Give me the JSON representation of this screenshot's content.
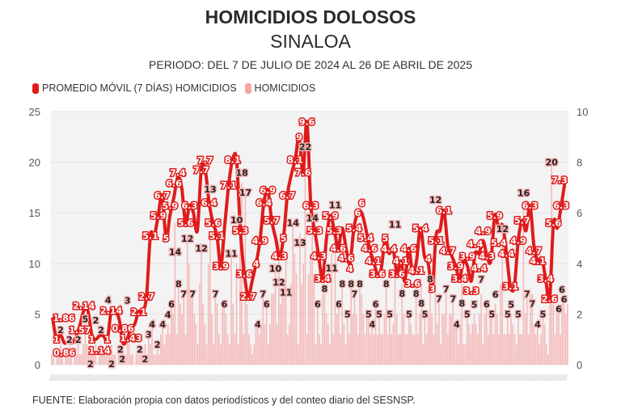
{
  "chart_data": {
    "type": "bar+line",
    "title": "HOMICIDIOS DOLOSOS",
    "subtitle": "SINALOA",
    "period": "PERIODO: DEL 7 DE JULIO DE 2024 AL 26 DE ABRIL DE 2025",
    "x_range": [
      "2024-07-07",
      "2025-04-26"
    ],
    "left_axis": {
      "ylim": [
        0,
        25
      ],
      "ticks": [
        "0",
        "5",
        "10",
        "15",
        "20",
        "25"
      ]
    },
    "right_axis": {
      "ylim": [
        0,
        10
      ],
      "ticks": [
        "0",
        "2",
        "4",
        "6",
        "8",
        "10"
      ]
    },
    "grid": true,
    "legend_position": "top-left",
    "colors": {
      "moving_average": "#e01b1b",
      "homicides": "#f6a5a5",
      "plot_bg": "#f3f3f3"
    },
    "legend": [
      {
        "label": "PROMEDIO MÓVIL (7 DÍAS) HOMICIDIOS",
        "color": "#e01b1b"
      },
      {
        "label": "HOMICIDIOS",
        "color": "#f6a5a5"
      }
    ],
    "series": [
      {
        "name": "HOMICIDIOS",
        "axis": "left",
        "type": "bar",
        "values": [
          1,
          1,
          0,
          1,
          1,
          2,
          1,
          0,
          1,
          1,
          2,
          1,
          0,
          1,
          1,
          2,
          1,
          1,
          2,
          5,
          2,
          1,
          2,
          1,
          1,
          2,
          0,
          1,
          2,
          1,
          1,
          2,
          4,
          1,
          2,
          1,
          1,
          0,
          1,
          2,
          2,
          1,
          1,
          3,
          2,
          1,
          1,
          0,
          1,
          1,
          2,
          1,
          1,
          2,
          1,
          3,
          2,
          4,
          1,
          1,
          2,
          1,
          3,
          4,
          2,
          3,
          4,
          3,
          6,
          5,
          14,
          3,
          8,
          6,
          5,
          7,
          3,
          12,
          10,
          7,
          7,
          5,
          4,
          2,
          8,
          12,
          6,
          4,
          2,
          10,
          13,
          5,
          2,
          7,
          6,
          3,
          2,
          6,
          6,
          5,
          3,
          2,
          11,
          6,
          3,
          10,
          2,
          14,
          18,
          3,
          17,
          6,
          3,
          2,
          1,
          2,
          4,
          4,
          3,
          4,
          7,
          4,
          6,
          2,
          4,
          7,
          7,
          10,
          4,
          12,
          6,
          7,
          8,
          11,
          3,
          4,
          8,
          14,
          11,
          9,
          2,
          13,
          8,
          10,
          22,
          3,
          9,
          11,
          14,
          9,
          2,
          6,
          3,
          2,
          7,
          8,
          5,
          4,
          2,
          11,
          3,
          11,
          5,
          6,
          3,
          8,
          4,
          2,
          5,
          3,
          8,
          5,
          7,
          5,
          3,
          8,
          7,
          5,
          3,
          5,
          5,
          3,
          4,
          3,
          6,
          3,
          5,
          3,
          3,
          5,
          8,
          3,
          5,
          3,
          4,
          11,
          5,
          3,
          3,
          8,
          5,
          3,
          3,
          5,
          4,
          3,
          3,
          8,
          3,
          5,
          8,
          2,
          5,
          3,
          5,
          8,
          5,
          3,
          12,
          4,
          7,
          2,
          5,
          5,
          7,
          3,
          5,
          5,
          7,
          4,
          4,
          2,
          4,
          8,
          2,
          2,
          5,
          4,
          3,
          4,
          5,
          4,
          3,
          5,
          7,
          2,
          5,
          6,
          3,
          5,
          5,
          3,
          6,
          5,
          3,
          8,
          12,
          3,
          3,
          5,
          3,
          5,
          4,
          3,
          2,
          5,
          3,
          3,
          16,
          5,
          7,
          3,
          7,
          7,
          4,
          3,
          4,
          2,
          3,
          5,
          4,
          2,
          1,
          6,
          20,
          6,
          3,
          5,
          6,
          3,
          6,
          6,
          5,
          6
        ]
      },
      {
        "name": "PROMEDIO MÓVIL (7 DÍAS) HOMICIDIOS",
        "axis": "right",
        "type": "line",
        "values": [
          1.86,
          1.0,
          1.2,
          0.86,
          0.9,
          0.86,
          1.1,
          1.57,
          2.14,
          2.14,
          1.2,
          1.0,
          1.14,
          1.14,
          1.0,
          2.14,
          2.14,
          1.8,
          0.86,
          1.0,
          1.43,
          1.6,
          2.1,
          2.1,
          2.7,
          5.1,
          5.1,
          5.9,
          6.7,
          5,
          5.9,
          6.6,
          7.4,
          7,
          5.6,
          6.3,
          6,
          5.3,
          7.7,
          7.7,
          6.4,
          5.6,
          5.1,
          3.9,
          5.5,
          7.1,
          8.1,
          8.1,
          5.3,
          3.6,
          2.7,
          3.3,
          4,
          4.9,
          6.4,
          6.9,
          5.7,
          5,
          4.3,
          5,
          6.7,
          7.5,
          8.1,
          9,
          7.6,
          9.6,
          6.3,
          5.3,
          4.3,
          3.4,
          5,
          5.9,
          5.3,
          4.6,
          5.4,
          4.6,
          4,
          5.4,
          6,
          6,
          5.4,
          4.6,
          4.1,
          3.6,
          3.8,
          5,
          4.4,
          4.6,
          3.6,
          4.1,
          3.3,
          4.6,
          3.6,
          4.1,
          5.4,
          4.3,
          4,
          3,
          5.1,
          5.3,
          6.1,
          4.7,
          4.3,
          3.9,
          3.4,
          4.1,
          3.9,
          3.3,
          4.4,
          4.4,
          4.9,
          4.3,
          4.1,
          5.9,
          5.4,
          5.5,
          4.4,
          3.1,
          3.1,
          4.9,
          5.7,
          5.3,
          6.3,
          4.7,
          4.1,
          4.2,
          3.4,
          2.6,
          5.6,
          5.4,
          6.3,
          7.3
        ],
        "labels": [
          "1.86",
          "1",
          "",
          "0.86",
          "",
          "",
          "",
          "1.57",
          "2.14",
          "",
          "1",
          "",
          "1.14",
          "",
          "1",
          "2.14",
          "",
          "",
          "0.86",
          "",
          "1.43",
          "",
          "2.1",
          "",
          "2.7",
          "5.1",
          "",
          "5.9",
          "6.7",
          "5",
          "5.9",
          "6.6",
          "7.4",
          "",
          "5.6",
          "6.3",
          "",
          "",
          "7.7",
          "7.7",
          "6.4",
          "5.6",
          "5.1",
          "3.9",
          "",
          "7.1",
          "8.1",
          "",
          "5.3",
          "3.6",
          "2.7",
          "",
          "4",
          "4.9",
          "6.4",
          "6.9",
          "5.7",
          "",
          "4.3",
          "5",
          "6.7",
          "",
          "8.1",
          "9",
          "7.6",
          "9.6",
          "6.3",
          "5.3",
          "4.3",
          "3.4",
          "",
          "5.9",
          "5.3",
          "4.6",
          "",
          "4.6",
          "4",
          "5.4",
          "6",
          "6",
          "5.4",
          "4.6",
          "4.1",
          "3.6",
          "",
          "5",
          "4.4",
          "",
          "3.6",
          "4.1",
          "",
          "4.6",
          "3.6",
          "4.1",
          "5.4",
          "",
          "4",
          "3",
          "5.1",
          "",
          "6.1",
          "4.7",
          "",
          "3.9",
          "3.4",
          "",
          "3.9",
          "3.3",
          "4.4",
          "4.4",
          "4.9",
          "4.3",
          "",
          "5.9",
          "5.4",
          "",
          "4.4",
          "3.1",
          "",
          "4.9",
          "5.7",
          "",
          "6.3",
          "4.7",
          "4.1",
          "",
          "3.4",
          "2.6",
          "5.6",
          "",
          "6.3",
          "7.3"
        ]
      }
    ]
  },
  "footer": "FUENTE: Elaboración propia con datos periodísticos y del conteo diario del SESNSP."
}
